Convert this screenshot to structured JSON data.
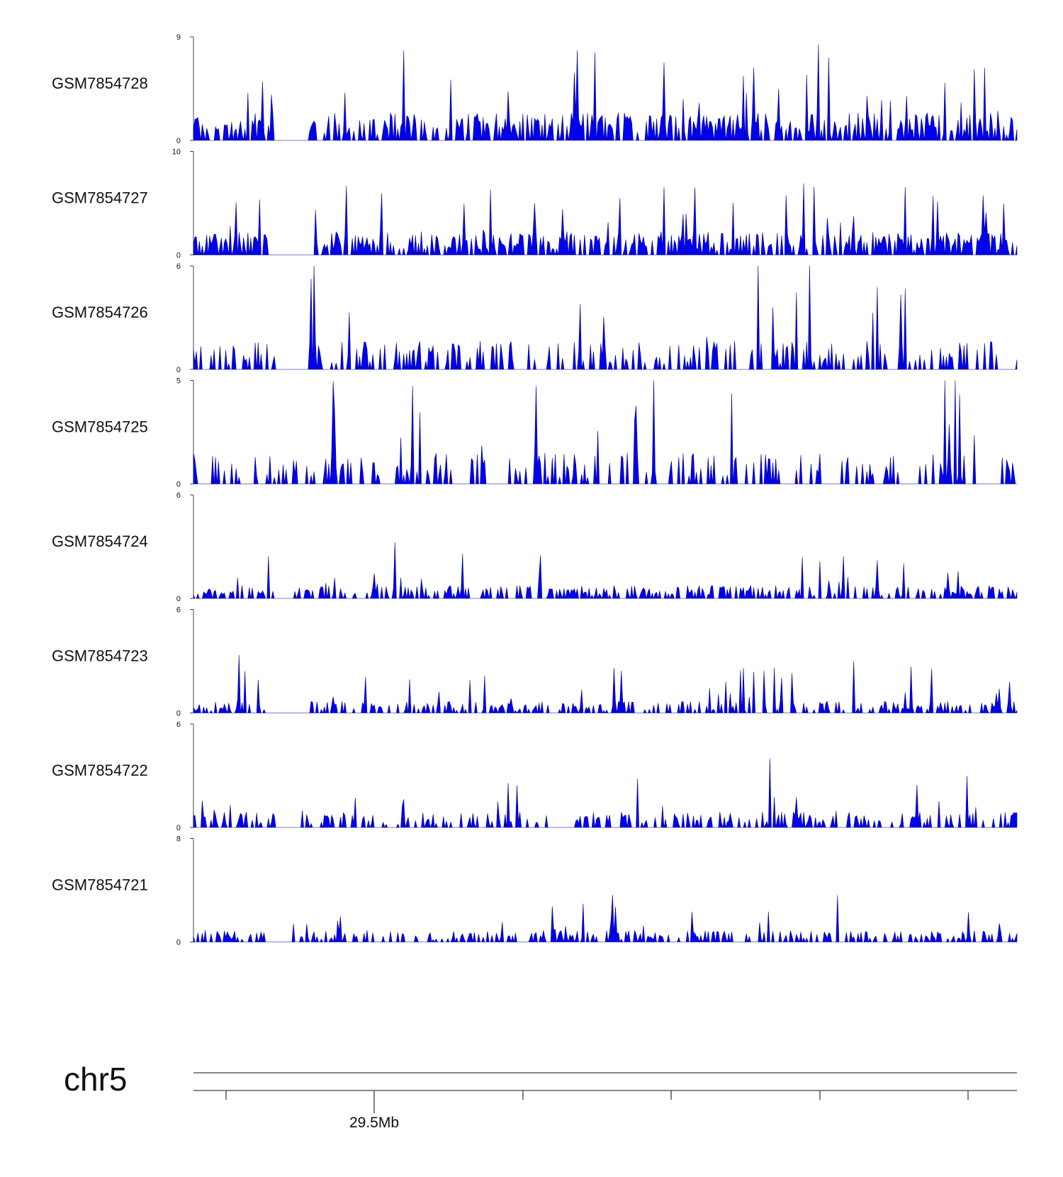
{
  "chart_data": {
    "type": "area",
    "fill_color": "#0000ee",
    "stroke_color": "#000088",
    "axis_color": "#444444",
    "ideogram_color": "#888888",
    "tracks": [
      {
        "name": "GSM7854728",
        "ylim": [
          0,
          9
        ],
        "tick_labels": [
          "9",
          "0"
        ],
        "seed": 11,
        "density": 0.62,
        "mean": 1.6,
        "peak_scale": 5.5,
        "gaps": [
          [
            0.1,
            0.14
          ]
        ]
      },
      {
        "name": "GSM7854727",
        "ylim": [
          0,
          10
        ],
        "tick_labels": [
          "10",
          "0"
        ],
        "seed": 23,
        "density": 0.62,
        "mean": 1.5,
        "peak_scale": 5.5,
        "gaps": [
          [
            0.09,
            0.14
          ]
        ]
      },
      {
        "name": "GSM7854726",
        "ylim": [
          0,
          6
        ],
        "tick_labels": [
          "6",
          "0"
        ],
        "seed": 37,
        "density": 0.36,
        "mean": 1.1,
        "peak_scale": 4.8,
        "gaps": [
          [
            0.1,
            0.13
          ]
        ]
      },
      {
        "name": "GSM7854725",
        "ylim": [
          0,
          5
        ],
        "tick_labels": [
          "5",
          "0"
        ],
        "seed": 41,
        "density": 0.34,
        "mean": 1.0,
        "peak_scale": 4.0,
        "gaps": [
          [
            0.36,
            0.38
          ],
          [
            0.95,
            0.98
          ]
        ]
      },
      {
        "name": "GSM7854724",
        "ylim": [
          0,
          6
        ],
        "tick_labels": [
          "6",
          "0"
        ],
        "seed": 53,
        "density": 0.46,
        "mean": 0.5,
        "peak_scale": 2.6,
        "gaps": [
          [
            0.1,
            0.12
          ]
        ]
      },
      {
        "name": "GSM7854723",
        "ylim": [
          0,
          6
        ],
        "tick_labels": [
          "6",
          "0"
        ],
        "seed": 67,
        "density": 0.44,
        "mean": 0.45,
        "peak_scale": 2.6,
        "gaps": [
          [
            0.09,
            0.14
          ]
        ]
      },
      {
        "name": "GSM7854722",
        "ylim": [
          0,
          6
        ],
        "tick_labels": [
          "6",
          "0"
        ],
        "seed": 71,
        "density": 0.44,
        "mean": 0.6,
        "peak_scale": 2.4,
        "gaps": [
          [
            0.1,
            0.13
          ],
          [
            0.43,
            0.46
          ]
        ]
      },
      {
        "name": "GSM7854721",
        "ylim": [
          0,
          8
        ],
        "tick_labels": [
          "8",
          "0"
        ],
        "seed": 89,
        "density": 0.46,
        "mean": 0.6,
        "peak_scale": 2.4,
        "gaps": [
          [
            0.09,
            0.12
          ]
        ]
      }
    ],
    "chromosome": "chr5",
    "coordinate_label": "29.5Mb"
  }
}
